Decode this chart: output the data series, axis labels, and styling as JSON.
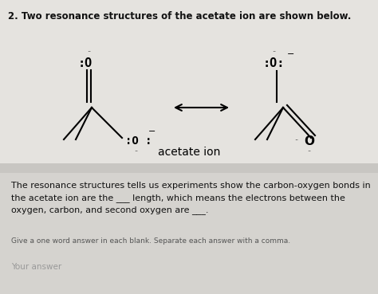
{
  "title": "2. Two resonance structures of the acetate ion are shown below.",
  "caption": "acetate ion",
  "body_text": "The resonance structures tells us experiments show the carbon-oxygen bonds in\nthe acetate ion are the ___ length, which means the electrons between the\noxygen, carbon, and second oxygen are ___.",
  "small_text": "Give a one word answer in each blank. Separate each answer with a comma.",
  "answer_text": "Your answer",
  "bg_top": "#dddbd8",
  "bg_top_panel": "#e8e6e2",
  "bg_bottom_panel": "#d8d6d2",
  "text_color": "#111111",
  "figure_width": 4.74,
  "figure_height": 3.69,
  "dpi": 100
}
